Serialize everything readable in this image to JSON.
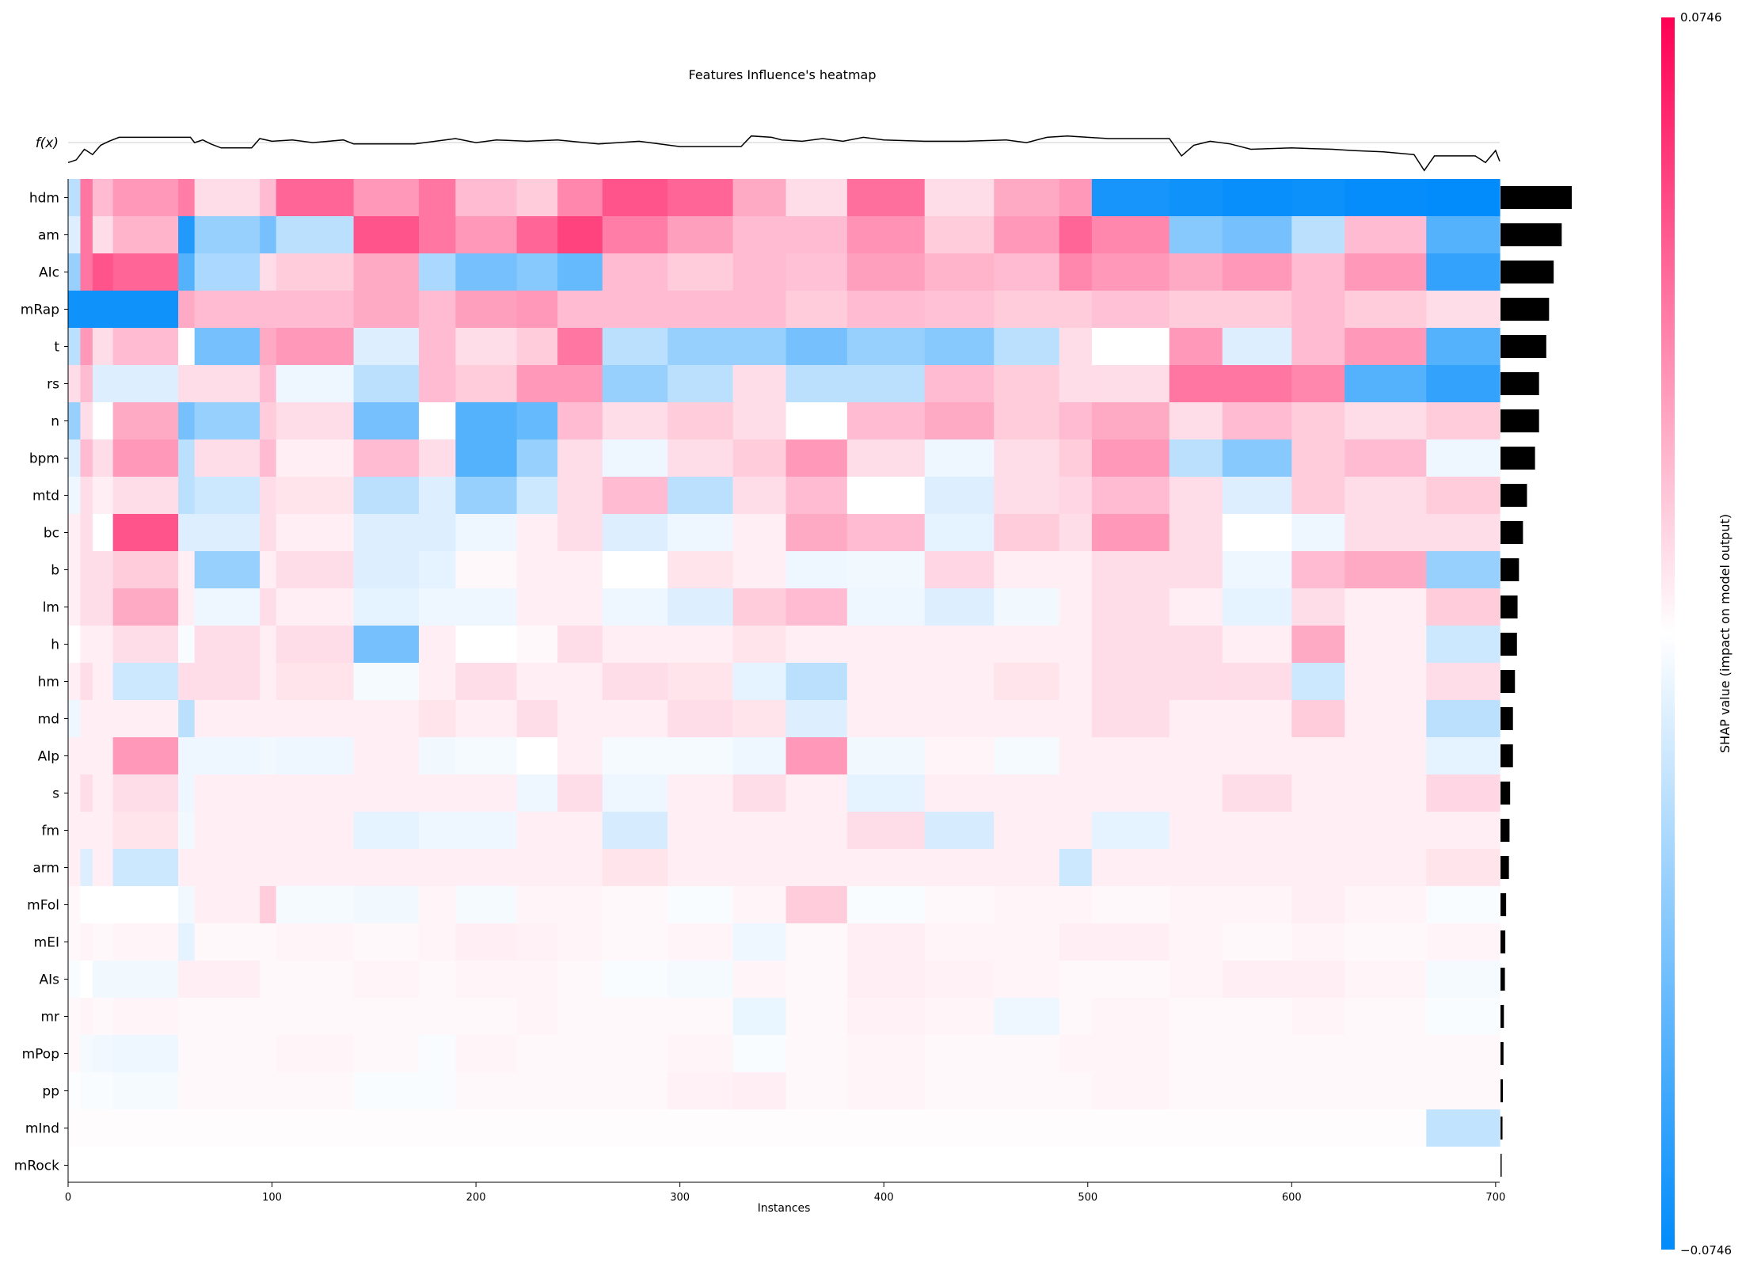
{
  "chart_data": {
    "type": "heatmap",
    "title": "Features Influence's heatmap",
    "xlabel": "Instances",
    "ylabel": "",
    "fx_label": "f(x)",
    "colorbar_label": "SHAP value (impact on model output)",
    "colorbar_max_label": "0.0746",
    "colorbar_min_label": "−0.0746",
    "value_range": [
      -0.0746,
      0.0746
    ],
    "xlim": [
      0,
      702
    ],
    "x_ticks": [
      0,
      100,
      200,
      300,
      400,
      500,
      600,
      700
    ],
    "colors": {
      "negative": "#008bfb",
      "neutral": "#ffffff",
      "positive": "#ff0052",
      "bar": "#000000",
      "line": "#000000"
    },
    "features": [
      "hdm",
      "am",
      "AIc",
      "mRap",
      "t",
      "rs",
      "n",
      "bpm",
      "mtd",
      "bc",
      "b",
      "lm",
      "h",
      "hm",
      "md",
      "AIp",
      "s",
      "fm",
      "arm",
      "mFol",
      "mEI",
      "AIs",
      "mr",
      "mPop",
      "pp",
      "mInd",
      "mRock"
    ],
    "mean_abs_shap": [
      0.0355,
      0.0305,
      0.0265,
      0.0242,
      0.0228,
      0.0192,
      0.0192,
      0.0172,
      0.0132,
      0.0112,
      0.0092,
      0.0085,
      0.0082,
      0.0072,
      0.0062,
      0.0062,
      0.0048,
      0.0045,
      0.0042,
      0.0028,
      0.0024,
      0.0022,
      0.0017,
      0.0015,
      0.0012,
      0.001,
      0.0004
    ],
    "segments_x": [
      0,
      6,
      12,
      22,
      54,
      62,
      94,
      102,
      140,
      172,
      190,
      220,
      240,
      262,
      294,
      326,
      352,
      382,
      420,
      454,
      486,
      502,
      540,
      566,
      600,
      626,
      666,
      702
    ],
    "segment_values": [
      [
        -0.02,
        0.04,
        0.02,
        0.03,
        0.038,
        0.01,
        0.02,
        0.045,
        0.03,
        0.04,
        0.02,
        0.015,
        0.035,
        0.05,
        0.045,
        0.025,
        0.01,
        0.042,
        0.01,
        0.025,
        0.03,
        -0.068,
        -0.07,
        -0.072,
        -0.071,
        -0.073,
        -0.074
      ],
      [
        -0.01,
        0.04,
        0.01,
        0.022,
        -0.065,
        -0.03,
        -0.04,
        -0.02,
        0.05,
        0.04,
        0.03,
        0.045,
        0.055,
        0.038,
        0.028,
        0.02,
        0.02,
        0.032,
        0.015,
        0.03,
        0.045,
        0.035,
        -0.035,
        -0.04,
        -0.02,
        0.02,
        -0.05
      ],
      [
        -0.03,
        0.04,
        0.05,
        0.045,
        -0.05,
        -0.025,
        0.01,
        0.015,
        0.025,
        -0.025,
        -0.04,
        -0.035,
        -0.045,
        0.02,
        0.015,
        0.02,
        0.018,
        0.028,
        0.022,
        0.02,
        0.035,
        0.03,
        0.025,
        0.03,
        0.02,
        0.03,
        -0.06
      ],
      [
        -0.07,
        -0.07,
        -0.07,
        -0.07,
        0.025,
        0.02,
        0.02,
        0.02,
        0.025,
        0.02,
        0.028,
        0.03,
        0.02,
        0.02,
        0.02,
        0.02,
        0.015,
        0.02,
        0.018,
        0.015,
        0.015,
        0.018,
        0.015,
        0.015,
        0.02,
        0.015,
        0.01
      ],
      [
        -0.02,
        0.03,
        0.01,
        0.02,
        0.0,
        -0.04,
        0.025,
        0.03,
        -0.01,
        0.02,
        0.01,
        0.015,
        0.04,
        -0.02,
        -0.03,
        -0.03,
        -0.04,
        -0.03,
        -0.035,
        -0.02,
        0.01,
        0.0,
        0.03,
        -0.01,
        0.02,
        0.03,
        -0.05
      ],
      [
        0.01,
        0.02,
        -0.01,
        -0.01,
        0.01,
        0.01,
        0.02,
        -0.005,
        -0.02,
        0.02,
        0.015,
        0.03,
        0.03,
        -0.03,
        -0.02,
        0.01,
        -0.02,
        -0.02,
        0.02,
        0.015,
        0.01,
        0.01,
        0.04,
        0.04,
        0.035,
        -0.05,
        -0.06
      ],
      [
        -0.03,
        0.01,
        0.0,
        0.025,
        -0.04,
        -0.03,
        0.015,
        0.01,
        -0.04,
        0.0,
        -0.05,
        -0.045,
        0.02,
        0.01,
        0.015,
        0.01,
        0.0,
        0.02,
        0.025,
        0.015,
        0.02,
        0.025,
        0.01,
        0.02,
        0.015,
        0.01,
        0.015
      ],
      [
        -0.01,
        0.02,
        0.01,
        0.03,
        -0.02,
        0.01,
        0.02,
        0.005,
        0.02,
        0.01,
        -0.05,
        -0.03,
        0.01,
        -0.005,
        0.01,
        0.015,
        0.03,
        0.01,
        -0.005,
        0.01,
        0.015,
        0.03,
        -0.02,
        -0.035,
        0.015,
        0.02,
        -0.005
      ],
      [
        -0.005,
        0.01,
        0.005,
        0.01,
        -0.02,
        -0.015,
        0.01,
        0.008,
        -0.02,
        -0.01,
        -0.03,
        -0.015,
        0.01,
        0.02,
        -0.02,
        0.01,
        0.02,
        0.0,
        -0.01,
        0.01,
        0.012,
        0.02,
        0.01,
        -0.01,
        0.015,
        0.01,
        0.015
      ],
      [
        0.005,
        0.01,
        0.0,
        0.05,
        -0.01,
        -0.01,
        0.01,
        0.005,
        -0.01,
        -0.01,
        -0.005,
        0.005,
        0.01,
        -0.01,
        -0.005,
        0.005,
        0.025,
        0.02,
        -0.008,
        0.015,
        0.01,
        0.03,
        0.01,
        0.0,
        -0.005,
        0.01,
        0.01
      ],
      [
        0.005,
        0.01,
        0.01,
        0.015,
        0.005,
        -0.03,
        0.005,
        0.01,
        -0.01,
        -0.008,
        0.002,
        0.005,
        0.005,
        0.0,
        0.008,
        0.005,
        -0.005,
        -0.004,
        0.012,
        0.005,
        0.005,
        0.01,
        0.01,
        -0.005,
        0.02,
        0.025,
        -0.03
      ],
      [
        0.005,
        0.01,
        0.01,
        0.025,
        0.005,
        -0.005,
        0.01,
        0.005,
        -0.008,
        -0.005,
        -0.005,
        0.005,
        0.005,
        -0.005,
        -0.01,
        0.015,
        0.02,
        -0.005,
        -0.01,
        -0.004,
        0.005,
        0.01,
        0.005,
        -0.008,
        0.01,
        0.005,
        0.015
      ],
      [
        0.0,
        0.005,
        0.005,
        0.01,
        -0.002,
        0.01,
        0.005,
        0.01,
        -0.04,
        0.005,
        0.0,
        0.002,
        0.01,
        0.005,
        0.005,
        0.008,
        0.005,
        0.005,
        0.005,
        0.005,
        0.005,
        0.01,
        0.01,
        0.005,
        0.025,
        0.005,
        -0.015
      ],
      [
        0.005,
        0.01,
        0.005,
        -0.015,
        0.01,
        0.01,
        0.005,
        0.008,
        -0.003,
        0.005,
        0.01,
        0.005,
        0.005,
        0.01,
        0.008,
        -0.008,
        -0.02,
        0.005,
        0.005,
        0.008,
        0.005,
        0.01,
        0.01,
        0.01,
        -0.015,
        0.005,
        0.01
      ],
      [
        -0.005,
        0.005,
        0.005,
        0.005,
        -0.02,
        0.005,
        0.005,
        0.005,
        0.005,
        0.008,
        0.005,
        0.01,
        0.005,
        0.005,
        0.01,
        0.008,
        -0.01,
        0.005,
        0.005,
        0.005,
        0.005,
        0.01,
        0.005,
        0.005,
        0.015,
        0.005,
        -0.02
      ],
      [
        0.005,
        0.005,
        0.005,
        0.03,
        -0.005,
        -0.005,
        -0.004,
        -0.005,
        0.005,
        -0.004,
        -0.003,
        0.0,
        0.005,
        -0.003,
        -0.003,
        -0.005,
        0.03,
        -0.004,
        0.003,
        -0.003,
        0.005,
        0.005,
        0.005,
        0.005,
        0.005,
        0.005,
        -0.008
      ],
      [
        0.005,
        0.01,
        0.005,
        0.01,
        -0.005,
        0.005,
        0.005,
        0.005,
        0.005,
        0.005,
        0.005,
        -0.005,
        0.01,
        -0.005,
        0.005,
        0.01,
        0.005,
        -0.008,
        0.005,
        0.005,
        0.005,
        0.005,
        0.005,
        0.01,
        0.005,
        0.005,
        0.012
      ],
      [
        0.005,
        0.005,
        0.005,
        0.008,
        -0.004,
        0.005,
        0.005,
        0.005,
        -0.008,
        -0.005,
        -0.005,
        0.005,
        0.005,
        -0.012,
        0.005,
        0.005,
        0.005,
        0.01,
        -0.012,
        0.005,
        0.005,
        -0.008,
        0.005,
        0.005,
        0.005,
        0.005,
        0.005
      ],
      [
        0.005,
        -0.01,
        0.005,
        -0.015,
        0.005,
        0.005,
        0.005,
        0.005,
        0.005,
        0.005,
        0.005,
        0.005,
        0.005,
        0.008,
        0.005,
        0.005,
        0.005,
        0.005,
        0.005,
        0.005,
        -0.015,
        0.005,
        0.005,
        0.005,
        0.005,
        0.005,
        0.008
      ],
      [
        0.002,
        0.0,
        0.0,
        0.0,
        -0.004,
        0.005,
        0.015,
        -0.003,
        -0.004,
        0.003,
        -0.003,
        0.003,
        0.003,
        0.002,
        -0.002,
        0.003,
        0.015,
        -0.002,
        0.002,
        0.003,
        0.003,
        0.002,
        0.003,
        0.003,
        0.005,
        0.003,
        -0.002
      ],
      [
        0.002,
        0.003,
        0.002,
        0.003,
        -0.008,
        0.002,
        0.002,
        0.003,
        0.002,
        0.003,
        0.005,
        0.004,
        0.003,
        0.002,
        0.003,
        -0.005,
        0.002,
        0.005,
        0.003,
        0.003,
        0.005,
        0.005,
        0.003,
        0.002,
        0.003,
        0.002,
        0.003
      ],
      [
        -0.002,
        0.0,
        -0.004,
        -0.004,
        0.005,
        0.005,
        0.002,
        0.002,
        0.003,
        0.002,
        0.003,
        0.003,
        0.002,
        -0.002,
        -0.003,
        0.003,
        0.002,
        0.005,
        0.004,
        0.003,
        0.002,
        0.002,
        0.003,
        0.005,
        0.005,
        0.003,
        -0.003
      ],
      [
        0.002,
        0.003,
        0.002,
        0.003,
        0.002,
        0.002,
        0.002,
        0.002,
        0.002,
        0.002,
        0.002,
        0.003,
        0.002,
        0.002,
        0.002,
        -0.006,
        0.002,
        0.004,
        0.003,
        -0.005,
        0.002,
        0.003,
        0.002,
        0.002,
        0.003,
        0.002,
        -0.002
      ],
      [
        0.002,
        -0.003,
        -0.004,
        -0.005,
        0.002,
        0.002,
        0.002,
        0.003,
        0.002,
        -0.002,
        0.003,
        0.002,
        0.002,
        0.002,
        0.003,
        -0.002,
        0.002,
        0.003,
        0.002,
        0.002,
        0.003,
        0.003,
        0.002,
        0.002,
        0.002,
        0.002,
        0.002
      ],
      [
        -0.001,
        -0.002,
        -0.002,
        -0.003,
        0.002,
        0.002,
        0.002,
        0.002,
        -0.002,
        -0.002,
        0.002,
        0.002,
        0.002,
        0.002,
        0.004,
        0.005,
        0.002,
        0.003,
        0.002,
        0.002,
        0.002,
        0.003,
        0.002,
        0.002,
        0.002,
        0.002,
        0.002
      ],
      [
        0.001,
        0.001,
        0.001,
        0.001,
        0.001,
        0.001,
        0.001,
        0.001,
        0.001,
        0.001,
        0.001,
        0.001,
        0.001,
        0.001,
        0.001,
        0.001,
        0.001,
        0.001,
        0.001,
        0.001,
        0.001,
        0.001,
        0.001,
        0.001,
        0.001,
        0.001,
        -0.018
      ],
      [
        0.0,
        0.0,
        0.0,
        0.0,
        0.0,
        0.0,
        0.0,
        0.0,
        0.0,
        0.0,
        0.0,
        0.0,
        0.0,
        0.0,
        0.0,
        0.0,
        0.0,
        0.0,
        0.0,
        0.0,
        0.0,
        0.0,
        0.0,
        0.0,
        0.0,
        0.0,
        0.0
      ]
    ],
    "fx_points": [
      [
        0,
        0.05
      ],
      [
        4,
        0.15
      ],
      [
        8,
        0.55
      ],
      [
        12,
        0.35
      ],
      [
        16,
        0.7
      ],
      [
        20,
        0.85
      ],
      [
        25,
        1.0
      ],
      [
        60,
        1.0
      ],
      [
        62,
        0.8
      ],
      [
        66,
        0.9
      ],
      [
        70,
        0.75
      ],
      [
        75,
        0.6
      ],
      [
        90,
        0.6
      ],
      [
        94,
        0.95
      ],
      [
        100,
        0.85
      ],
      [
        110,
        0.9
      ],
      [
        120,
        0.8
      ],
      [
        135,
        0.9
      ],
      [
        140,
        0.75
      ],
      [
        170,
        0.75
      ],
      [
        180,
        0.85
      ],
      [
        190,
        0.95
      ],
      [
        200,
        0.8
      ],
      [
        210,
        0.9
      ],
      [
        225,
        0.85
      ],
      [
        240,
        0.9
      ],
      [
        260,
        0.75
      ],
      [
        280,
        0.85
      ],
      [
        300,
        0.65
      ],
      [
        330,
        0.65
      ],
      [
        335,
        1.05
      ],
      [
        345,
        1.0
      ],
      [
        350,
        0.9
      ],
      [
        360,
        0.85
      ],
      [
        370,
        0.95
      ],
      [
        380,
        0.85
      ],
      [
        390,
        1.0
      ],
      [
        400,
        0.9
      ],
      [
        420,
        0.85
      ],
      [
        440,
        0.85
      ],
      [
        460,
        0.9
      ],
      [
        470,
        0.8
      ],
      [
        480,
        1.0
      ],
      [
        490,
        1.05
      ],
      [
        500,
        1.0
      ],
      [
        510,
        0.95
      ],
      [
        530,
        0.95
      ],
      [
        540,
        0.95
      ],
      [
        546,
        0.3
      ],
      [
        552,
        0.7
      ],
      [
        560,
        0.85
      ],
      [
        570,
        0.75
      ],
      [
        580,
        0.55
      ],
      [
        600,
        0.6
      ],
      [
        620,
        0.55
      ],
      [
        630,
        0.5
      ],
      [
        645,
        0.45
      ],
      [
        660,
        0.35
      ],
      [
        665,
        -0.25
      ],
      [
        670,
        0.3
      ],
      [
        690,
        0.3
      ],
      [
        695,
        0.05
      ],
      [
        700,
        0.5
      ],
      [
        702,
        0.1
      ]
    ]
  }
}
